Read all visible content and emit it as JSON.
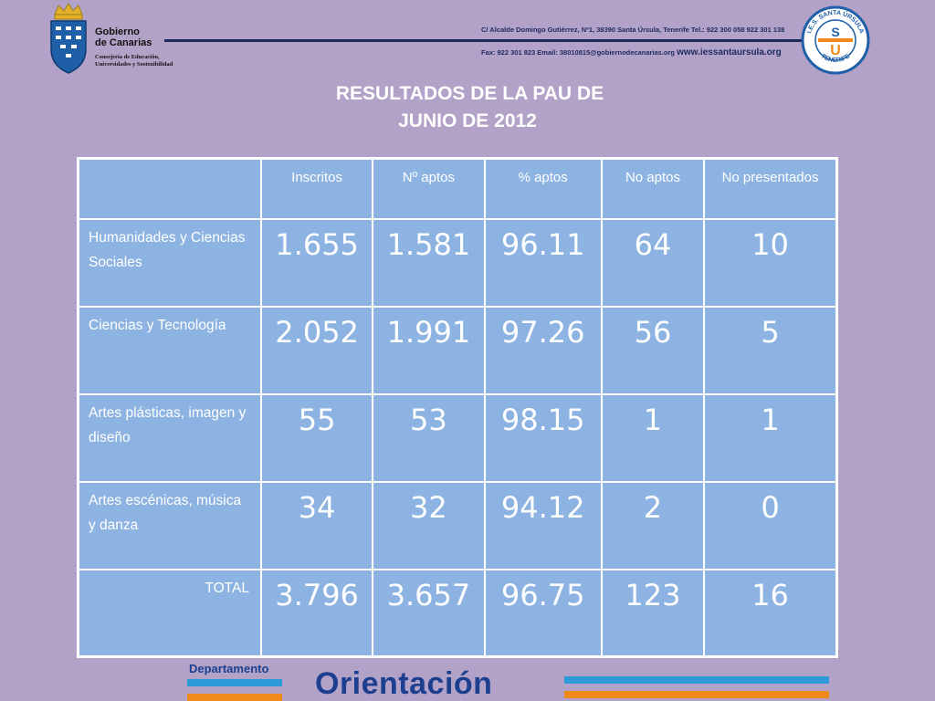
{
  "header": {
    "gov_name_line1": "Gobierno",
    "gov_name_line2": "de Canarias",
    "gov_dept_line1": "Consejería de Educación,",
    "gov_dept_line2": "Universidades y Sostenibilidad",
    "contact_line1": "C/ Alcalde Domingo Gutiérrez, Nº1, 38390 Santa Úrsula, Tenerife Tel.: 922 300 058 922 301 138",
    "contact_line2": "Fax: 922 301 823  Email: 38010815@gobiernodecanarias.org",
    "website": "www.iessantaursula.org",
    "school_logo_text_top": "I.E.S. SANTA ÚRSULA",
    "school_logo_text_bottom": "TENERIFE",
    "school_logo_letters": "SU"
  },
  "title": {
    "line1": "RESULTADOS DE LA PAU DE",
    "line2": "JUNIO DE 2012"
  },
  "table": {
    "headers": [
      "",
      "Inscritos",
      "Nº aptos",
      "% aptos",
      "No aptos",
      "No presentados"
    ],
    "rows": [
      {
        "label": "Humanidades y Ciencias Sociales",
        "values": [
          "1.655",
          "1.581",
          "96.11",
          "64",
          "10"
        ]
      },
      {
        "label": "Ciencias y Tecnología",
        "values": [
          "2.052",
          "1.991",
          "97.26",
          "56",
          "5"
        ]
      },
      {
        "label": "Artes plásticas, imagen y diseño",
        "values": [
          "55",
          "53",
          "98.15",
          "1",
          "1"
        ]
      },
      {
        "label": "Artes escénicas, música y danza",
        "values": [
          "34",
          "32",
          "94.12",
          "2",
          "0"
        ]
      },
      {
        "label": "TOTAL",
        "values": [
          "3.796",
          "3.657",
          "96.75",
          "123",
          "16"
        ]
      }
    ]
  },
  "footer": {
    "dept_label": "Departamento",
    "orient_label": "Orientación"
  },
  "colors": {
    "background": "#b3a2c8",
    "table_fill": "#8db3e2",
    "brand_blue": "#1c3f8f",
    "accent_blue": "#2f9ad8",
    "accent_orange": "#f08a1c"
  }
}
